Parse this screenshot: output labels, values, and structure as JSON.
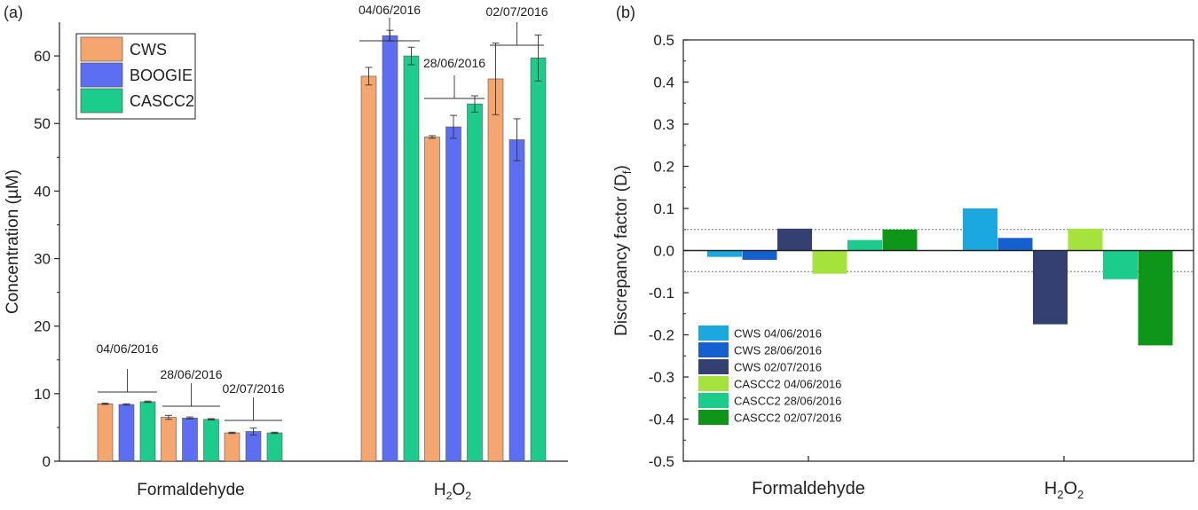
{
  "chart_data": [
    {
      "panel_label": "(a)",
      "type": "bar",
      "groups": [
        "Formaldehyde",
        "H2O2"
      ],
      "group_labels": {
        "Formaldehyde": {
          "text": "Formaldehyde"
        },
        "H2O2": {
          "main": "H",
          "sub1": "2",
          "mid": "O",
          "sub2": "2"
        }
      },
      "dates": [
        "04/06/2016",
        "28/06/2016",
        "02/07/2016"
      ],
      "series": [
        {
          "name": "CWS",
          "color": "#f5a56e",
          "values": {
            "Formaldehyde": [
              8.5,
              6.5,
              4.2
            ],
            "H2O2": [
              57.0,
              48.0,
              56.6
            ]
          },
          "errors": {
            "Formaldehyde": [
              0.1,
              0.3,
              0.1
            ],
            "H2O2": [
              1.3,
              0.2,
              5.3
            ]
          }
        },
        {
          "name": "BOOGIE",
          "color": "#5c6ef2",
          "values": {
            "Formaldehyde": [
              8.4,
              6.4,
              4.4
            ],
            "H2O2": [
              63.0,
              49.5,
              47.6
            ]
          },
          "errors": {
            "Formaldehyde": [
              0.1,
              0.15,
              0.5
            ],
            "H2O2": [
              0.8,
              1.7,
              3.1
            ]
          }
        },
        {
          "name": "CASCC2",
          "color": "#1ccc8c",
          "values": {
            "Formaldehyde": [
              8.8,
              6.2,
              4.2
            ],
            "H2O2": [
              60.0,
              52.9,
              59.7
            ]
          },
          "errors": {
            "Formaldehyde": [
              0.1,
              0.1,
              0.1
            ],
            "H2O2": [
              1.3,
              1.2,
              3.4
            ]
          }
        }
      ],
      "ylabel": "Concentration (µM)",
      "ylim": [
        0,
        65
      ],
      "yticks": [
        "0",
        "10",
        "20",
        "30",
        "40",
        "50",
        "60"
      ],
      "legend_position": "top-left",
      "grid": false
    },
    {
      "panel_label": "(b)",
      "type": "bar",
      "groups": [
        "Formaldehyde",
        "H2O2"
      ],
      "group_labels": {
        "Formaldehyde": {
          "text": "Formaldehyde"
        },
        "H2O2": {
          "main": "H",
          "sub1": "2",
          "mid": "O",
          "sub2": "2"
        }
      },
      "series": [
        {
          "name": "CWS 04/06/2016",
          "color": "#1ba8e0",
          "values": [
            -0.015,
            0.1
          ]
        },
        {
          "name": "CWS 28/06/2016",
          "color": "#1560d0",
          "values": [
            -0.022,
            0.03
          ]
        },
        {
          "name": "CWS 02/07/2016",
          "color": "#343f72",
          "values": [
            0.052,
            -0.175
          ]
        },
        {
          "name": "CASCC2 04/06/2016",
          "color": "#a6e23c",
          "values": [
            -0.055,
            0.052
          ]
        },
        {
          "name": "CASCC2 28/06/2016",
          "color": "#1ccc8c",
          "values": [
            0.025,
            -0.068
          ]
        },
        {
          "name": "CASCC2 02/07/2016",
          "color": "#0d9618",
          "values": [
            0.05,
            -0.225
          ]
        }
      ],
      "ylabel": {
        "main": "Discrepancy factor (D",
        "sub": "f",
        "close": ")"
      },
      "ylim": [
        -0.5,
        0.5
      ],
      "yticks": [
        "-0.5",
        "-0.4",
        "-0.3",
        "-0.2",
        "-0.1",
        "0.0",
        "0.1",
        "0.2",
        "0.3",
        "0.4",
        "0.5"
      ],
      "reference_lines": [
        0.05,
        -0.05
      ],
      "legend_position": "bottom-left",
      "grid": false
    }
  ]
}
